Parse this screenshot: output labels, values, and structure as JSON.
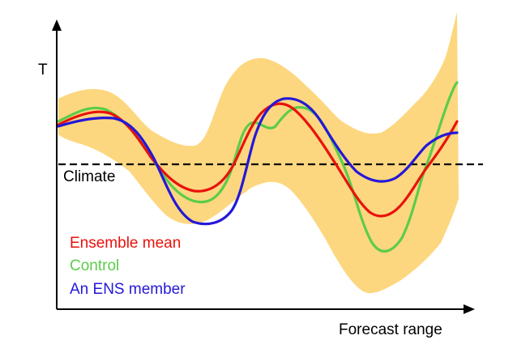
{
  "axes": {
    "y_label": "T",
    "x_label": "Forecast range"
  },
  "climate_label": "Climate",
  "legend": [
    {
      "key": "ensemble_mean",
      "label": "Ensemble mean",
      "color": "#e8120c"
    },
    {
      "key": "control",
      "label": "Control",
      "color": "#5ccc4a"
    },
    {
      "key": "ens_member",
      "label": "An ENS member",
      "color": "#2418d8"
    }
  ],
  "colors": {
    "spread": "#fdd77f",
    "axis": "#000000",
    "climate_line": "#000000"
  }
}
